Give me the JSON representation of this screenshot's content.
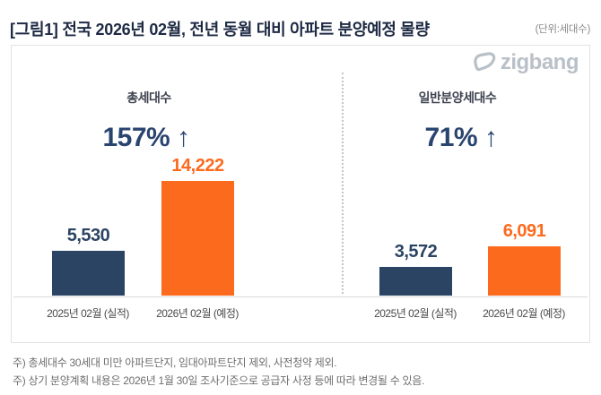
{
  "header": {
    "title": "[그림1] 전국 2026년 02월, 전년 동월 대비 아파트 분양예정 물량",
    "unit_label": "(단위:세대수)"
  },
  "brand": {
    "name": "zigbang"
  },
  "chart_data": {
    "type": "bar",
    "title": "전국 2026년 02월, 전년 동월 대비 아파트 분양예정 물량",
    "unit": "세대수",
    "legend_position": "none",
    "grid": false,
    "groups": [
      {
        "title": "총세대수",
        "change": "157% ↑",
        "categories": [
          "2025년 02월 (실적)",
          "2026년 02월 (예정)"
        ],
        "values": [
          5530,
          14222
        ],
        "value_labels": [
          "5,530",
          "14,222"
        ]
      },
      {
        "title": "일반분양세대수",
        "change": "71% ↑",
        "categories": [
          "2025년 02월 (실적)",
          "2026년 02월 (예정)"
        ],
        "values": [
          3572,
          6091
        ],
        "value_labels": [
          "3,572",
          "6,091"
        ]
      }
    ],
    "colors": {
      "actual_bar": "#2b4463",
      "planned_bar": "#fc6a1e",
      "change_text": "#2a4470"
    }
  },
  "footnotes": [
    "주) 총세대수 30세대 미만 아파트단지, 임대아파트단지 제외, 사전청약 제외.",
    "주) 상기 분양계획 내용은 2026년 1월 30일 조사기준으로 공급자 사정 등에 따라 변경될 수 있음."
  ]
}
